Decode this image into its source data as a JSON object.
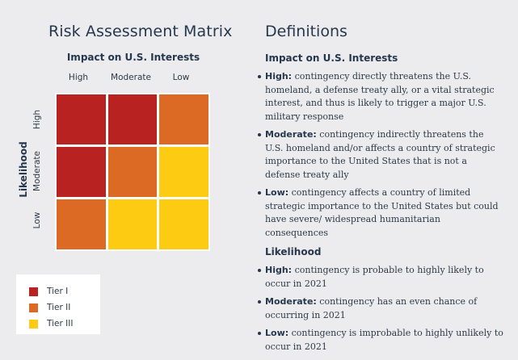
{
  "colors": {
    "tier1": "#b82322",
    "tier2": "#dd6a24",
    "tier3": "#fccb12"
  },
  "matrix": {
    "title": "Risk Assessment Matrix",
    "x_axis_title": "Impact on U.S. Interests",
    "y_axis_title": "Likelihood",
    "columns": [
      "High",
      "Moderate",
      "Low"
    ],
    "rows": [
      "High",
      "Moderate",
      "Low"
    ],
    "cells": [
      [
        "tier1",
        "tier1",
        "tier2"
      ],
      [
        "tier1",
        "tier2",
        "tier3"
      ],
      [
        "tier2",
        "tier3",
        "tier3"
      ]
    ]
  },
  "legend": [
    {
      "label": "Tier I",
      "tier": "tier1"
    },
    {
      "label": "Tier II",
      "tier": "tier2"
    },
    {
      "label": "Tier III",
      "tier": "tier3"
    }
  ],
  "definitions": {
    "title": "Definitions",
    "impact": {
      "heading": "Impact on U.S. Interests",
      "items": [
        {
          "term": "High:",
          "text": " contingency directly threatens the U.S. homeland, a defense treaty ally, or a vital strategic interest, and thus is likely to trigger a major U.S. military response"
        },
        {
          "term": "Moderate:",
          "text": " contingency indirectly threatens the U.S. homeland and/or affects a country of strategic importance to the United States that is not a defense treaty ally"
        },
        {
          "term": "Low:",
          "text": " contingency affects a country of limited strategic importance to the United States but could have severe/ widespread humanitarian consequences"
        }
      ]
    },
    "likelihood": {
      "heading": "Likelihood",
      "items": [
        {
          "term": "High:",
          "text": " contingency is probable to highly likely to occur in 2021"
        },
        {
          "term": "Moderate:",
          "text": " contingency has an even chance of occurring in 2021"
        },
        {
          "term": "Low:",
          "text": " contingency is improbable to highly unlikely to occur in 2021"
        }
      ]
    }
  }
}
